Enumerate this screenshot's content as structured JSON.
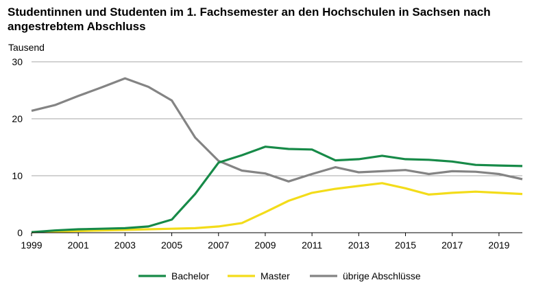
{
  "chart_data": {
    "type": "line",
    "title": "Studentinnen und Studenten im 1. Fachsemester an den Hochschulen in Sachsen nach angestrebtem Abschluss",
    "title_lines": [
      "Studentinnen und Studenten im 1. Fachsemester an den Hochschulen in Sachsen nach",
      "angestrebtem Abschluss"
    ],
    "ylabel": "Tausend",
    "xlabel": "",
    "ylim": [
      0,
      30
    ],
    "yticks": [
      0,
      10,
      20,
      30
    ],
    "xlim": [
      1999,
      2020
    ],
    "xticks": [
      "1999",
      "2001",
      "2003",
      "2005",
      "2007",
      "2009",
      "2011",
      "2013",
      "2015",
      "2017",
      "2019"
    ],
    "grid": "horizontal",
    "legend_position": "bottom",
    "x": [
      1999,
      2000,
      2001,
      2002,
      2003,
      2004,
      2005,
      2006,
      2007,
      2008,
      2009,
      2010,
      2011,
      2012,
      2013,
      2014,
      2015,
      2016,
      2017,
      2018,
      2019,
      2020
    ],
    "series": [
      {
        "name": "Bachelor",
        "color": "#178a48",
        "values": [
          0.1,
          0.4,
          0.6,
          0.7,
          0.8,
          1.1,
          2.3,
          6.8,
          12.3,
          13.6,
          15.1,
          14.7,
          14.6,
          12.7,
          12.9,
          13.5,
          12.9,
          12.8,
          12.5,
          11.9,
          11.8,
          11.7
        ]
      },
      {
        "name": "Master",
        "color": "#f3dc1a",
        "values": [
          0.1,
          0.2,
          0.3,
          0.4,
          0.5,
          0.6,
          0.7,
          0.8,
          1.1,
          1.7,
          3.6,
          5.6,
          7.0,
          7.7,
          8.2,
          8.7,
          7.8,
          6.7,
          7.0,
          7.2,
          7.0,
          6.8
        ]
      },
      {
        "name": "übrige Abschlüsse",
        "color": "#848484",
        "values": [
          21.4,
          22.4,
          24.0,
          25.5,
          27.1,
          25.6,
          23.2,
          16.7,
          12.6,
          10.9,
          10.4,
          9.0,
          10.3,
          11.5,
          10.6,
          10.8,
          11.0,
          10.3,
          10.8,
          10.7,
          10.3,
          9.4
        ]
      }
    ]
  }
}
